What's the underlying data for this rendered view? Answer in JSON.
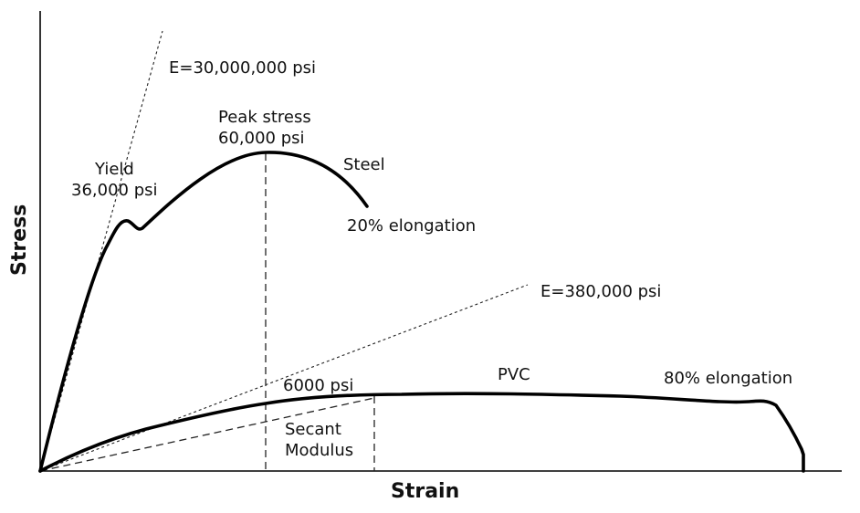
{
  "axes": {
    "x_title": "Strain",
    "y_title": "Stress"
  },
  "steel": {
    "label": "Steel",
    "modulus_label": "E=30,000,000 psi",
    "yield_label_line1": "Yield",
    "yield_label_line2": "36,000 psi",
    "peak_label_line1": "Peak stress",
    "peak_label_line2": "60,000 psi",
    "elongation_label": "20% elongation"
  },
  "pvc": {
    "label": "PVC",
    "modulus_label": "E=380,000 psi",
    "stress_label": "6000 psi",
    "secant_label_line1": "Secant",
    "secant_label_line2": "Modulus",
    "elongation_label": "80% elongation"
  }
}
